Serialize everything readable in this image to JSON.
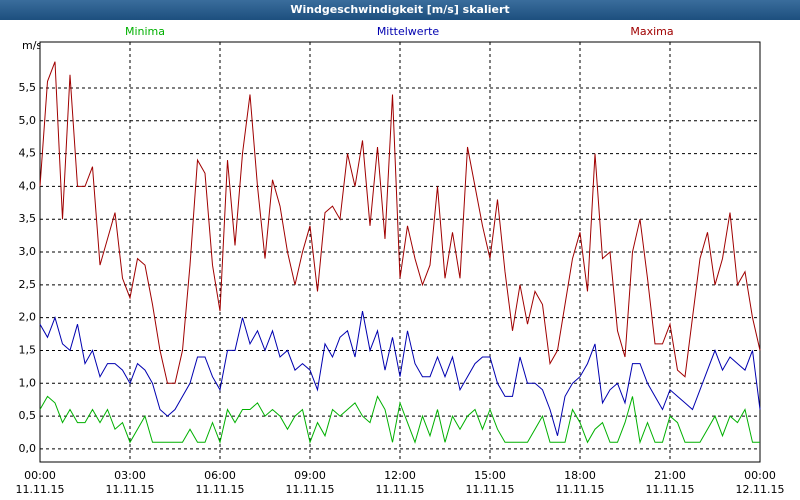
{
  "chart_data": {
    "type": "line",
    "title": "Windgeschwindigkeit [m/s] skaliert",
    "y_label": "m/s",
    "x": [
      0,
      0.25,
      0.5,
      0.75,
      1,
      1.25,
      1.5,
      1.75,
      2,
      2.25,
      2.5,
      2.75,
      3,
      3.25,
      3.5,
      3.75,
      4,
      4.25,
      4.5,
      4.75,
      5,
      5.25,
      5.5,
      5.75,
      6,
      6.25,
      6.5,
      6.75,
      7,
      7.25,
      7.5,
      7.75,
      8,
      8.25,
      8.5,
      8.75,
      9,
      9.25,
      9.5,
      9.75,
      10,
      10.25,
      10.5,
      10.75,
      11,
      11.25,
      11.5,
      11.75,
      12,
      12.25,
      12.5,
      12.75,
      13,
      13.25,
      13.5,
      13.75,
      14,
      14.25,
      14.5,
      14.75,
      15,
      15.25,
      15.5,
      15.75,
      16,
      16.25,
      16.5,
      16.75,
      17,
      17.25,
      17.5,
      17.75,
      18,
      18.25,
      18.5,
      18.75,
      19,
      19.25,
      19.5,
      19.75,
      20,
      20.25,
      20.5,
      20.75,
      21,
      21.25,
      21.5,
      21.75,
      22,
      22.25,
      22.5,
      22.75,
      23,
      23.25,
      23.5,
      23.75,
      24
    ],
    "series": [
      {
        "name": "Minima",
        "color": "#00b000",
        "values": [
          0.6,
          0.8,
          0.7,
          0.4,
          0.6,
          0.4,
          0.4,
          0.6,
          0.4,
          0.6,
          0.3,
          0.4,
          0.1,
          0.3,
          0.5,
          0.1,
          0.1,
          0.1,
          0.1,
          0.1,
          0.3,
          0.1,
          0.1,
          0.4,
          0.1,
          0.6,
          0.4,
          0.6,
          0.6,
          0.7,
          0.5,
          0.6,
          0.5,
          0.3,
          0.5,
          0.6,
          0.1,
          0.4,
          0.2,
          0.6,
          0.5,
          0.6,
          0.7,
          0.5,
          0.4,
          0.8,
          0.6,
          0.1,
          0.7,
          0.4,
          0.1,
          0.5,
          0.2,
          0.6,
          0.1,
          0.5,
          0.3,
          0.5,
          0.6,
          0.3,
          0.6,
          0.3,
          0.1,
          0.1,
          0.1,
          0.1,
          0.3,
          0.5,
          0.1,
          0.1,
          0.1,
          0.6,
          0.4,
          0.1,
          0.3,
          0.4,
          0.1,
          0.1,
          0.4,
          0.8,
          0.1,
          0.4,
          0.1,
          0.1,
          0.5,
          0.4,
          0.1,
          0.1,
          0.1,
          0.3,
          0.5,
          0.2,
          0.5,
          0.4,
          0.6,
          0.1,
          0.1
        ]
      },
      {
        "name": "Mittelwerte",
        "color": "#0000b0",
        "values": [
          1.9,
          1.7,
          2.0,
          1.6,
          1.5,
          1.9,
          1.3,
          1.5,
          1.1,
          1.3,
          1.3,
          1.2,
          1.0,
          1.3,
          1.2,
          1.0,
          0.6,
          0.5,
          0.6,
          0.8,
          1.0,
          1.4,
          1.4,
          1.1,
          0.9,
          1.5,
          1.5,
          2.0,
          1.6,
          1.8,
          1.5,
          1.8,
          1.4,
          1.5,
          1.2,
          1.3,
          1.2,
          0.9,
          1.6,
          1.4,
          1.7,
          1.8,
          1.4,
          2.1,
          1.5,
          1.8,
          1.2,
          1.7,
          1.1,
          1.8,
          1.3,
          1.1,
          1.1,
          1.4,
          1.1,
          1.4,
          0.9,
          1.1,
          1.3,
          1.4,
          1.4,
          1.0,
          0.8,
          0.8,
          1.4,
          1.0,
          1.0,
          0.9,
          0.6,
          0.2,
          0.8,
          1.0,
          1.1,
          1.3,
          1.6,
          0.7,
          0.9,
          1.0,
          0.7,
          1.3,
          1.3,
          1.0,
          0.8,
          0.6,
          0.9,
          0.8,
          0.7,
          0.6,
          0.9,
          1.2,
          1.5,
          1.2,
          1.4,
          1.3,
          1.2,
          1.5,
          0.6
        ]
      },
      {
        "name": "Maxima",
        "color": "#a00000",
        "values": [
          4.0,
          5.6,
          5.9,
          3.5,
          5.7,
          4.0,
          4.0,
          4.3,
          2.8,
          3.2,
          3.6,
          2.6,
          2.3,
          2.9,
          2.8,
          2.2,
          1.5,
          1.0,
          1.0,
          1.5,
          2.8,
          4.4,
          4.2,
          2.8,
          2.1,
          4.4,
          3.1,
          4.5,
          5.4,
          4.0,
          2.9,
          4.1,
          3.7,
          3.0,
          2.5,
          3.0,
          3.4,
          2.4,
          3.6,
          3.7,
          3.5,
          4.5,
          4.0,
          4.7,
          3.4,
          4.6,
          3.2,
          5.4,
          2.6,
          3.4,
          2.9,
          2.5,
          2.8,
          4.0,
          2.6,
          3.3,
          2.6,
          4.6,
          4.0,
          3.4,
          2.9,
          3.8,
          2.7,
          1.8,
          2.5,
          1.9,
          2.4,
          2.2,
          1.3,
          1.5,
          2.2,
          2.9,
          3.3,
          2.4,
          4.5,
          2.9,
          3.0,
          1.8,
          1.4,
          3.0,
          3.5,
          2.6,
          1.6,
          1.6,
          1.9,
          1.2,
          1.1,
          2.0,
          2.9,
          3.3,
          2.5,
          2.9,
          3.6,
          2.5,
          2.7,
          2.0,
          1.5
        ]
      }
    ],
    "xlim": [
      0,
      24
    ],
    "xticks": [
      {
        "value": 0,
        "label": "00:00"
      },
      {
        "value": 3,
        "label": "03:00"
      },
      {
        "value": 6,
        "label": "06:00"
      },
      {
        "value": 9,
        "label": "09:00"
      },
      {
        "value": 12,
        "label": "12:00"
      },
      {
        "value": 15,
        "label": "15:00"
      },
      {
        "value": 18,
        "label": "18:00"
      },
      {
        "value": 21,
        "label": "21:00"
      },
      {
        "value": 24,
        "label": "00:00"
      }
    ],
    "xtick_dates": [
      "11.11.15",
      "11.11.15",
      "11.11.15",
      "11.11.15",
      "11.11.15",
      "11.11.15",
      "11.11.15",
      "11.11.15",
      "12.11.15"
    ],
    "ylim": [
      -0.2,
      6.2
    ],
    "yticks": [
      {
        "value": 0,
        "label": "0,0"
      },
      {
        "value": 0.5,
        "label": "0,5"
      },
      {
        "value": 1,
        "label": "1,0"
      },
      {
        "value": 1.5,
        "label": "1,5"
      },
      {
        "value": 2,
        "label": "2,0"
      },
      {
        "value": 2.5,
        "label": "2,5"
      },
      {
        "value": 3,
        "label": "3,0"
      },
      {
        "value": 3.5,
        "label": "3,5"
      },
      {
        "value": 4,
        "label": "4,0"
      },
      {
        "value": 4.5,
        "label": "4,5"
      },
      {
        "value": 5,
        "label": "5,0"
      },
      {
        "value": 5.5,
        "label": "5,5"
      }
    ],
    "grid": true
  }
}
